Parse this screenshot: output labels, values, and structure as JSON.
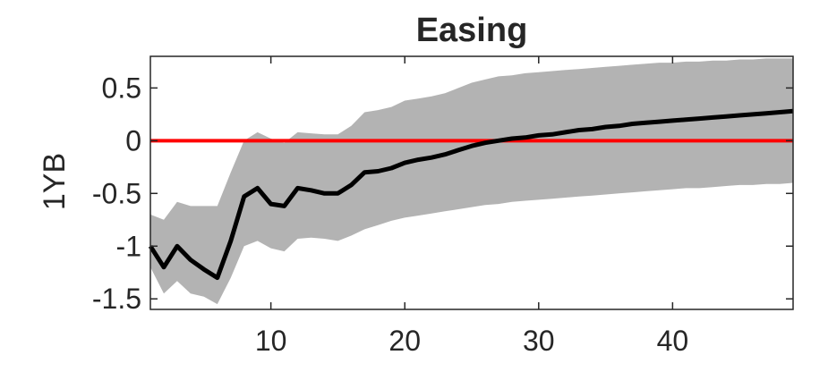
{
  "chart_data": {
    "type": "line",
    "title": "Easing",
    "xlabel": "",
    "ylabel": "1YB",
    "xlim": [
      1,
      49
    ],
    "ylim": [
      -1.6,
      0.8
    ],
    "x_ticks": [
      10,
      20,
      30,
      40
    ],
    "x_tick_labels": [
      "10",
      "20",
      "30",
      "40"
    ],
    "y_ticks": [
      0.5,
      0,
      -0.5,
      -1,
      -1.5
    ],
    "y_tick_labels": [
      "0.5",
      "0",
      "-0.5",
      "-1",
      "-1.5"
    ],
    "grid": false,
    "legend": "none",
    "reference_line": {
      "y": 0,
      "color": "#ff0000"
    },
    "colors": {
      "line": "#000000",
      "band": "#b3b3b3",
      "axes": "#262626"
    },
    "x": [
      1,
      2,
      3,
      4,
      5,
      6,
      7,
      8,
      9,
      10,
      11,
      12,
      13,
      14,
      15,
      16,
      17,
      18,
      19,
      20,
      21,
      22,
      23,
      24,
      25,
      26,
      27,
      28,
      29,
      30,
      31,
      32,
      33,
      34,
      35,
      36,
      37,
      38,
      39,
      40,
      41,
      42,
      43,
      44,
      45,
      46,
      47,
      48,
      49
    ],
    "series": [
      {
        "role": "median",
        "values": [
          -1.0,
          -1.2,
          -1.0,
          -1.13,
          -1.22,
          -1.3,
          -0.95,
          -0.53,
          -0.45,
          -0.6,
          -0.62,
          -0.45,
          -0.47,
          -0.5,
          -0.5,
          -0.42,
          -0.3,
          -0.29,
          -0.26,
          -0.21,
          -0.18,
          -0.16,
          -0.13,
          -0.09,
          -0.05,
          -0.02,
          0.0,
          0.02,
          0.03,
          0.05,
          0.06,
          0.08,
          0.1,
          0.11,
          0.13,
          0.14,
          0.16,
          0.17,
          0.18,
          0.19,
          0.2,
          0.21,
          0.22,
          0.23,
          0.24,
          0.25,
          0.26,
          0.27,
          0.28
        ]
      },
      {
        "role": "upper",
        "values": [
          -0.7,
          -0.75,
          -0.58,
          -0.62,
          -0.62,
          -0.62,
          -0.3,
          0.0,
          0.08,
          0.02,
          -0.02,
          0.08,
          0.07,
          0.06,
          0.06,
          0.14,
          0.27,
          0.29,
          0.32,
          0.38,
          0.4,
          0.42,
          0.45,
          0.5,
          0.55,
          0.58,
          0.61,
          0.62,
          0.64,
          0.65,
          0.66,
          0.67,
          0.68,
          0.69,
          0.7,
          0.71,
          0.72,
          0.73,
          0.74,
          0.74,
          0.75,
          0.75,
          0.76,
          0.76,
          0.77,
          0.77,
          0.78,
          0.78,
          0.78
        ]
      },
      {
        "role": "lower",
        "values": [
          -1.2,
          -1.45,
          -1.33,
          -1.45,
          -1.48,
          -1.55,
          -1.3,
          -1.0,
          -0.95,
          -1.02,
          -1.05,
          -0.93,
          -0.92,
          -0.93,
          -0.95,
          -0.9,
          -0.84,
          -0.8,
          -0.76,
          -0.73,
          -0.71,
          -0.69,
          -0.67,
          -0.65,
          -0.63,
          -0.61,
          -0.6,
          -0.58,
          -0.57,
          -0.56,
          -0.55,
          -0.54,
          -0.53,
          -0.52,
          -0.51,
          -0.5,
          -0.49,
          -0.48,
          -0.47,
          -0.46,
          -0.45,
          -0.45,
          -0.44,
          -0.43,
          -0.42,
          -0.42,
          -0.41,
          -0.41,
          -0.4
        ]
      }
    ]
  }
}
